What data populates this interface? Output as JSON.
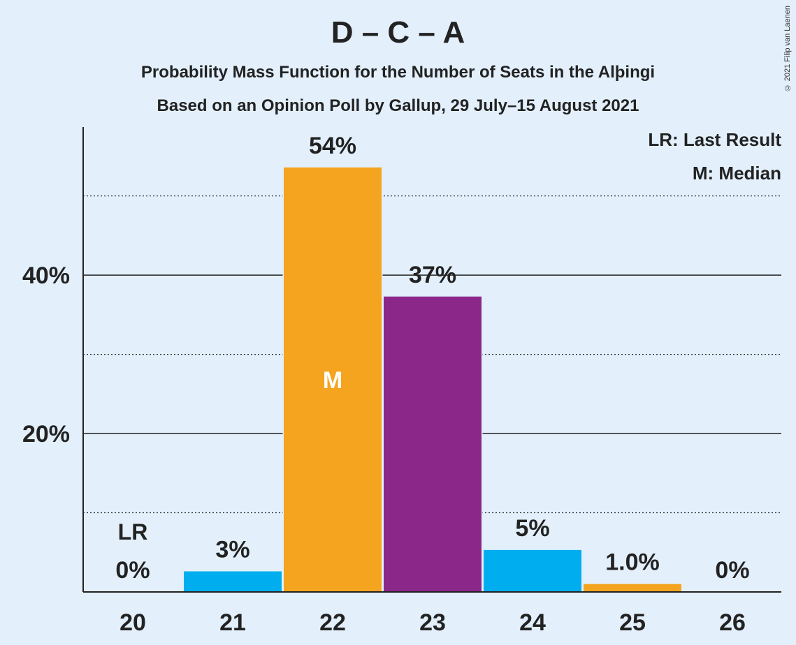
{
  "header": {
    "title": "D – C – A",
    "subtitle1": "Probability Mass Function for the Number of Seats in the Alþingi",
    "subtitle2": "Based on an Opinion Poll by Gallup, 29 July–15 August 2021",
    "copyright": "© 2021 Filip van Laenen"
  },
  "legend": {
    "lr": "LR: Last Result",
    "m": "M: Median"
  },
  "colors": {
    "background": "#e3f0fc",
    "blue": "#00aeef",
    "orange": "#f4a41e",
    "purple": "#8c278a",
    "text": "#222222"
  },
  "chart_data": {
    "type": "bar",
    "title": "D – C – A",
    "categories": [
      "20",
      "21",
      "22",
      "23",
      "24",
      "25",
      "26"
    ],
    "values": [
      0,
      2.6,
      53.6,
      37.3,
      5.3,
      1.0,
      0
    ],
    "value_labels": [
      "0%",
      "3%",
      "54%",
      "37%",
      "5%",
      "1.0%",
      "0%"
    ],
    "bar_colors": [
      "#00aeef",
      "#00aeef",
      "#f4a41e",
      "#8c278a",
      "#00aeef",
      "#f4a41e",
      "#00aeef"
    ],
    "ylim": [
      0,
      58.7
    ],
    "yticks": [
      20,
      40
    ],
    "ytick_labels": [
      "20%",
      "40%"
    ],
    "minor_gridlines": [
      10,
      30,
      50
    ],
    "last_result_category": "20",
    "last_result_label": "LR",
    "median_category": "22",
    "median_label": "M",
    "legend_position": "top-right"
  }
}
